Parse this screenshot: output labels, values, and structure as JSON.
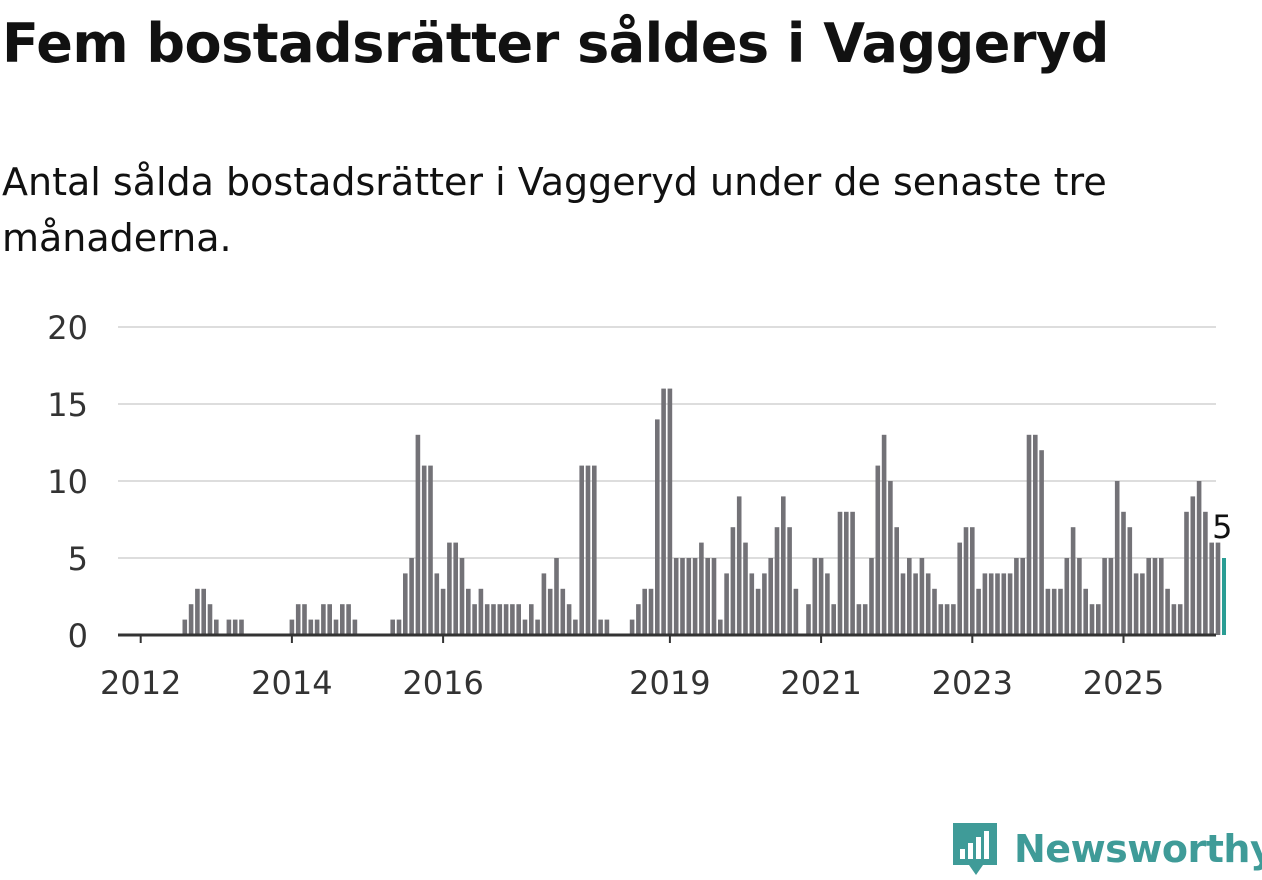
{
  "title": "Fem bostadsrätter såldes i Vaggeryd",
  "subtitle": "Antal sålda bostadsrätter i Vaggeryd under de senaste tre månaderna.",
  "brand": {
    "name": "Newsworthy",
    "icon": "newsworthy-logo-icon",
    "color": "#3f9b98"
  },
  "colors": {
    "bar": "#737277",
    "highlight": "#2a9d94",
    "grid": "#dddddd",
    "axis": "#333333"
  },
  "chart_data": {
    "type": "bar",
    "x_start": "2011-10",
    "x_step": "1 month",
    "values": [
      0,
      0,
      0,
      0,
      0,
      0,
      0,
      0,
      0,
      0,
      1,
      2,
      3,
      3,
      2,
      1,
      0,
      1,
      1,
      1,
      0,
      0,
      0,
      0,
      0,
      0,
      0,
      1,
      2,
      2,
      1,
      1,
      2,
      2,
      1,
      2,
      2,
      1,
      0,
      0,
      0,
      0,
      0,
      1,
      1,
      4,
      5,
      13,
      11,
      11,
      4,
      3,
      6,
      6,
      5,
      3,
      2,
      3,
      2,
      2,
      2,
      2,
      2,
      2,
      1,
      2,
      1,
      4,
      3,
      5,
      3,
      2,
      1,
      11,
      11,
      11,
      1,
      1,
      0,
      0,
      0,
      1,
      2,
      3,
      3,
      14,
      16,
      16,
      5,
      5,
      5,
      5,
      6,
      5,
      5,
      1,
      4,
      7,
      9,
      6,
      4,
      3,
      4,
      5,
      7,
      9,
      7,
      3,
      0,
      2,
      5,
      5,
      4,
      2,
      8,
      8,
      8,
      2,
      2,
      5,
      11,
      13,
      10,
      7,
      4,
      5,
      4,
      5,
      4,
      3,
      2,
      2,
      2,
      6,
      7,
      7,
      3,
      4,
      4,
      4,
      4,
      4,
      5,
      5,
      13,
      13,
      12,
      3,
      3,
      3,
      5,
      7,
      5,
      3,
      2,
      2,
      5,
      5,
      10,
      8,
      7,
      4,
      4,
      5,
      5,
      5,
      3,
      2,
      2,
      8,
      9,
      10,
      8,
      6,
      6,
      5
    ],
    "highlight_last": true,
    "last_value_label": "5",
    "x_ticks": [
      {
        "label": "2012",
        "index": 3
      },
      {
        "label": "2014",
        "index": 27
      },
      {
        "label": "2016",
        "index": 51
      },
      {
        "label": "2019",
        "index": 87
      },
      {
        "label": "2021",
        "index": 111
      },
      {
        "label": "2023",
        "index": 135
      },
      {
        "label": "2025",
        "index": 159
      }
    ],
    "y_ticks": [
      "0",
      "5",
      "10",
      "15",
      "20"
    ],
    "ylim": [
      0,
      20
    ],
    "xlabel": "",
    "ylabel": "",
    "grid": true
  }
}
